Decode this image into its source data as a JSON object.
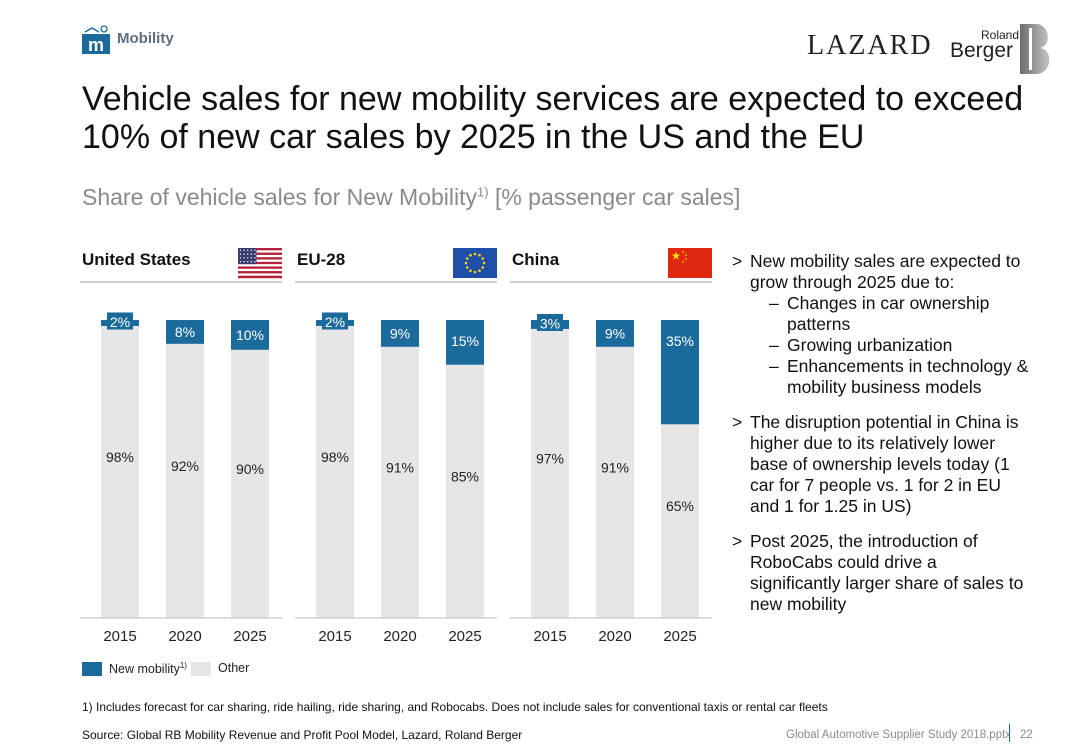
{
  "header": {
    "section_label": "Mobility",
    "lazard_logo_text": "LAZARD",
    "rb_logo_line1": "Roland",
    "rb_logo_line2": "Berger"
  },
  "title": "Vehicle sales for new mobility services are expected to exceed 10% of new car sales by 2025 in the US and the EU",
  "subtitle": {
    "main": "Share of vehicle sales for New Mobility",
    "sup": "1)",
    "tail": " [% passenger car sales]"
  },
  "colors": {
    "new_mobility": "#1b6a9c",
    "other": "#e6e6e6"
  },
  "chart_data": {
    "type": "bar",
    "stacked": true,
    "ylim": [
      0,
      100
    ],
    "categories": [
      "2015",
      "2020",
      "2025"
    ],
    "panels": [
      {
        "name": "United States",
        "flag": "us-flag-icon",
        "series": [
          {
            "name": "New mobility",
            "values": [
              2,
              8,
              10
            ],
            "labels": [
              "2%",
              "8%",
              "10%"
            ]
          },
          {
            "name": "Other",
            "values": [
              98,
              92,
              90
            ],
            "labels": [
              "98%",
              "92%",
              "90%"
            ]
          }
        ]
      },
      {
        "name": "EU-28",
        "flag": "eu-flag-icon",
        "series": [
          {
            "name": "New mobility",
            "values": [
              2,
              9,
              15
            ],
            "labels": [
              "2%",
              "9%",
              "15%"
            ]
          },
          {
            "name": "Other",
            "values": [
              98,
              91,
              85
            ],
            "labels": [
              "98%",
              "91%",
              "85%"
            ]
          }
        ]
      },
      {
        "name": "China",
        "flag": "china-flag-icon",
        "series": [
          {
            "name": "New mobility",
            "values": [
              3,
              9,
              35
            ],
            "labels": [
              "3%",
              "9%",
              "35%"
            ]
          },
          {
            "name": "Other",
            "values": [
              97,
              91,
              65
            ],
            "labels": [
              "97%",
              "91%",
              "65%"
            ]
          }
        ]
      }
    ],
    "legend": [
      {
        "label": "New mobility",
        "sup": "1)"
      },
      {
        "label": "Other"
      }
    ]
  },
  "bullets": [
    {
      "text": "New mobility sales are expected to grow through 2025 due to:",
      "sub": [
        "Changes in car ownership patterns",
        "Growing urbanization",
        "Enhancements in technology & mobility business models"
      ]
    },
    {
      "text": "The disruption potential in China is higher due to its relatively lower base of ownership levels today (1 car for 7 people vs. 1 for 2 in EU and 1 for 1.25 in US)"
    },
    {
      "text": "Post 2025, the introduction of RoboCabs could drive a significantly larger share of sales to new mobility"
    }
  ],
  "bullet_marker": ">",
  "sub_marker": "–",
  "footnote": "1) Includes forecast for car sharing, ride hailing, ride sharing, and Robocabs. Does not include sales for conventional taxis or rental car fleets",
  "source": "Source: Global RB Mobility Revenue and Profit Pool Model, Lazard, Roland Berger",
  "file_info": "Global Automotive Supplier Study 2018.pptx",
  "page_number": "22"
}
